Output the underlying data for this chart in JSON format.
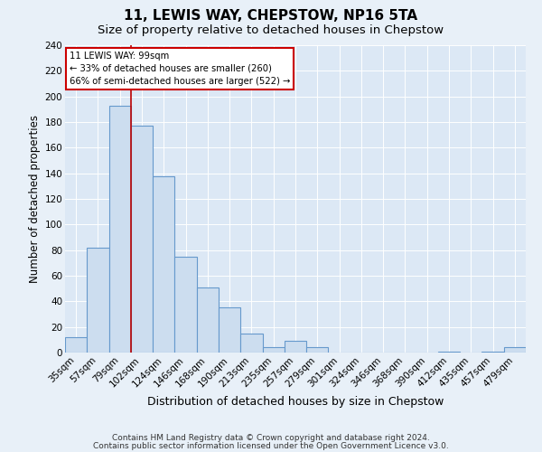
{
  "title": "11, LEWIS WAY, CHEPSTOW, NP16 5TA",
  "subtitle": "Size of property relative to detached houses in Chepstow",
  "xlabel": "Distribution of detached houses by size in Chepstow",
  "ylabel": "Number of detached properties",
  "bin_labels": [
    "35sqm",
    "57sqm",
    "79sqm",
    "102sqm",
    "124sqm",
    "146sqm",
    "168sqm",
    "190sqm",
    "213sqm",
    "235sqm",
    "257sqm",
    "279sqm",
    "301sqm",
    "324sqm",
    "346sqm",
    "368sqm",
    "390sqm",
    "412sqm",
    "435sqm",
    "457sqm",
    "479sqm"
  ],
  "bar_heights": [
    12,
    82,
    193,
    177,
    138,
    75,
    51,
    35,
    15,
    4,
    9,
    4,
    0,
    0,
    0,
    0,
    0,
    1,
    0,
    1,
    4
  ],
  "bar_color": "#ccddef",
  "bar_edge_color": "#6699cc",
  "bar_edge_width": 0.8,
  "annotation_line_color": "#bb0000",
  "annotation_box_text": "11 LEWIS WAY: 99sqm\n← 33% of detached houses are smaller (260)\n66% of semi-detached houses are larger (522) →",
  "ylim": [
    0,
    240
  ],
  "yticks": [
    0,
    20,
    40,
    60,
    80,
    100,
    120,
    140,
    160,
    180,
    200,
    220,
    240
  ],
  "fig_bg_color": "#e8f0f8",
  "plot_bg_color": "#dce8f5",
  "footer_line1": "Contains HM Land Registry data © Crown copyright and database right 2024.",
  "footer_line2": "Contains public sector information licensed under the Open Government Licence v3.0.",
  "title_fontsize": 11,
  "subtitle_fontsize": 9.5,
  "xlabel_fontsize": 9,
  "ylabel_fontsize": 8.5,
  "tick_fontsize": 7.5,
  "footer_fontsize": 6.5
}
